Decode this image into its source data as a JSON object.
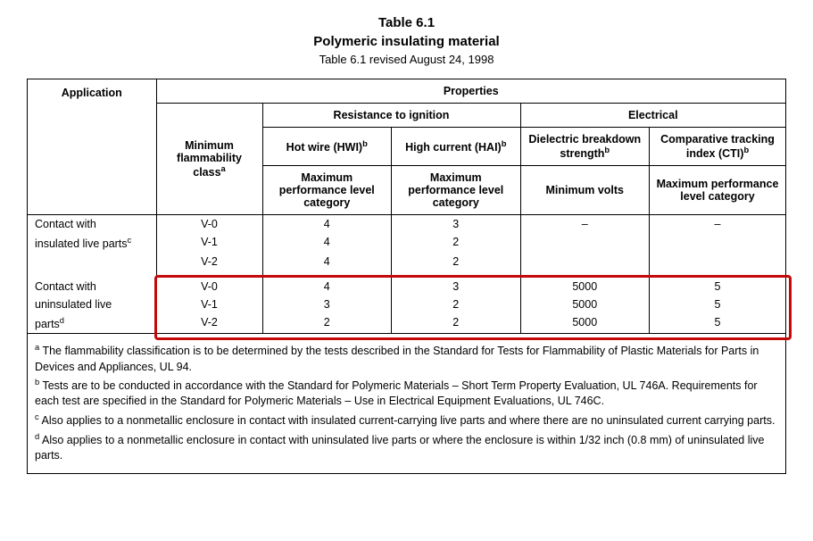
{
  "title": {
    "number": "Table 6.1",
    "name": "Polymeric insulating material",
    "revision": "Table 6.1 revised August 24, 1998"
  },
  "headers": {
    "application": "Application",
    "properties": "Properties",
    "min_flamm": "Minimum flammability class",
    "min_flamm_sup": "a",
    "resist_ign": "Resistance to ignition",
    "electrical": "Electrical",
    "hwi": "Hot wire (HWI)",
    "hwi_sup": "b",
    "hai": "High current (HAI)",
    "hai_sup": "b",
    "dielectric": "Dielectric breakdown strength",
    "dielectric_sup": "b",
    "cti": "Comparative tracking index (CTI)",
    "cti_sup": "b",
    "max_perf": "Maximum performance level category",
    "min_volts": "Minimum volts"
  },
  "rows": {
    "app1_l1": "Contact with",
    "app1_l2": "insulated live parts",
    "app1_sup": "c",
    "app2_l1": "Contact with",
    "app2_l2": "uninsulated live",
    "app2_l3": "parts",
    "app2_sup": "d",
    "r1": {
      "flamm": "V-0",
      "hwi": "4",
      "hai": "3",
      "diel": "–",
      "cti": "–"
    },
    "r2": {
      "flamm": "V-1",
      "hwi": "4",
      "hai": "2",
      "diel": "",
      "cti": ""
    },
    "r3": {
      "flamm": "V-2",
      "hwi": "4",
      "hai": "2",
      "diel": "",
      "cti": ""
    },
    "r4": {
      "flamm": "V-0",
      "hwi": "4",
      "hai": "3",
      "diel": "5000",
      "cti": "5"
    },
    "r5": {
      "flamm": "V-1",
      "hwi": "3",
      "hai": "2",
      "diel": "5000",
      "cti": "5"
    },
    "r6": {
      "flamm": "V-2",
      "hwi": "2",
      "hai": "2",
      "diel": "5000",
      "cti": "5"
    }
  },
  "footnotes": {
    "a": "The flammability classification is to be determined by the tests described in the Standard for Tests for Flammability of Plastic Materials for Parts in Devices and Appliances, UL 94.",
    "b": "Tests are to be conducted in accordance with the Standard for Polymeric Materials – Short Term Property Evaluation, UL 746A. Requirements for each test are specified in the Standard for Polymeric Materials – Use in Electrical Equipment Evaluations, UL 746C.",
    "c": "Also applies to a nonmetallic enclosure in contact with insulated current-carrying live parts and where there are no uninsulated current carrying parts.",
    "d": "Also applies to a nonmetallic enclosure in contact with uninsulated live parts or where the enclosure is within 1/32 inch (0.8 mm) of uninsulated live parts."
  },
  "style": {
    "highlight_color": "#c40909",
    "border_color": "#000000",
    "bg_color": "#ffffff"
  }
}
